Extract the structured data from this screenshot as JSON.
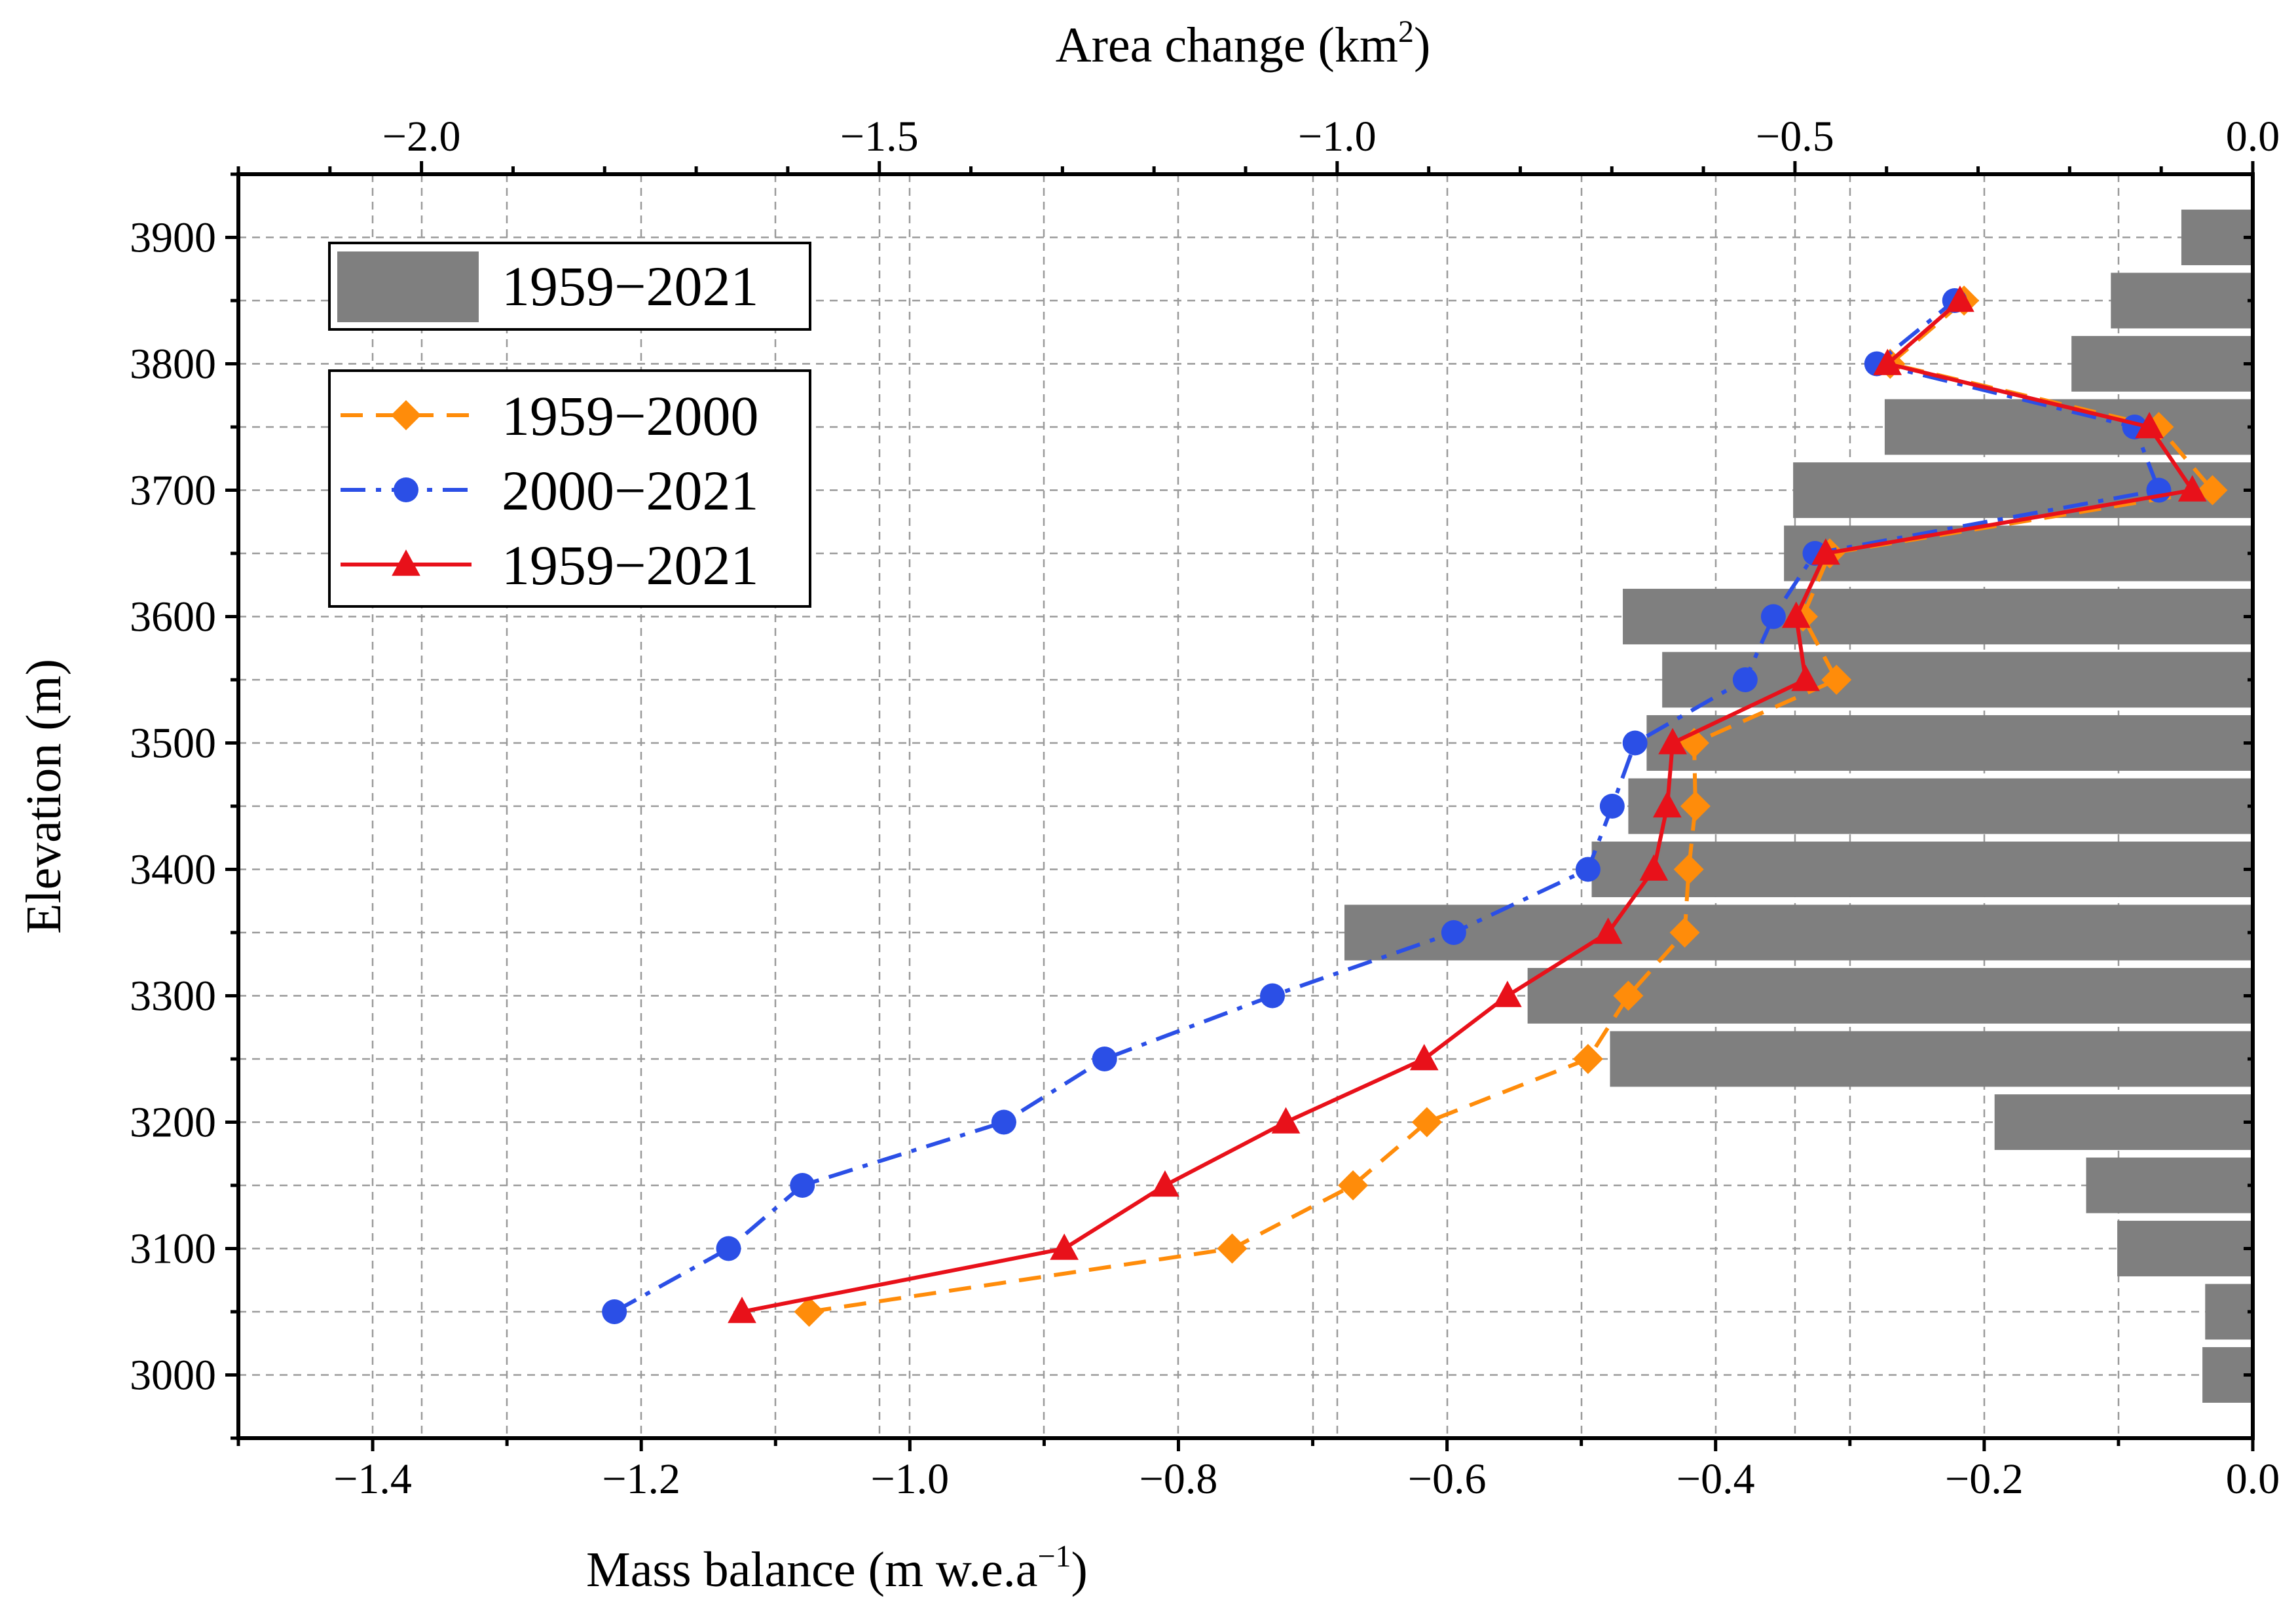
{
  "chart_data": {
    "type": "line",
    "xlabel_bottom": {
      "main": "Mass balance (m w.e.a",
      "sup": "−1",
      "end": ")"
    },
    "xlabel_top": {
      "main": "Area change (km",
      "sup": "2",
      "end": ")"
    },
    "ylabel": "Elevation (m)",
    "xlim_bottom": [
      -1.5,
      0.0
    ],
    "xlim_top": [
      -2.2,
      0.0
    ],
    "ylim": [
      2950,
      3950
    ],
    "bottom_ticks": [
      "−1.4",
      "−1.2",
      "−1.0",
      "−0.8",
      "−0.6",
      "−0.4",
      "−0.2",
      "0.0"
    ],
    "bottom_tick_values": [
      -1.4,
      -1.2,
      -1.0,
      -0.8,
      -0.6,
      -0.4,
      -0.2,
      0.0
    ],
    "top_ticks": [
      "−2.0",
      "−1.5",
      "−1.0",
      "−0.5",
      "0.0"
    ],
    "top_tick_values": [
      -2.0,
      -1.5,
      -1.0,
      -0.5,
      0.0
    ],
    "y_ticks": [
      "3000",
      "3100",
      "3200",
      "3300",
      "3400",
      "3500",
      "3600",
      "3700",
      "3800",
      "3900"
    ],
    "y_tick_values": [
      3000,
      3100,
      3200,
      3300,
      3400,
      3500,
      3600,
      3700,
      3800,
      3900
    ],
    "grid": true,
    "legend_placement": "top-left",
    "bars": {
      "name": "1959−2021",
      "axis": "top",
      "color": "#7f7f7f",
      "elevations": [
        3000,
        3050,
        3100,
        3150,
        3200,
        3250,
        3300,
        3350,
        3400,
        3450,
        3500,
        3550,
        3600,
        3650,
        3700,
        3750,
        3800,
        3850,
        3900
      ],
      "values": [
        -0.055,
        -0.052,
        -0.148,
        -0.182,
        -0.282,
        -0.702,
        -0.792,
        -0.992,
        -0.722,
        -0.682,
        -0.662,
        -0.645,
        -0.688,
        -0.512,
        -0.502,
        -0.402,
        -0.198,
        -0.155,
        -0.078
      ]
    },
    "series": [
      {
        "name": "1959−2000",
        "style": "dashed",
        "marker": "diamond",
        "color": "#ff8c0a",
        "elevations": [
          3050,
          3100,
          3150,
          3200,
          3250,
          3300,
          3350,
          3400,
          3450,
          3500,
          3550,
          3600,
          3650,
          3700,
          3750,
          3800,
          3850
        ],
        "values": [
          -1.075,
          -0.76,
          -0.67,
          -0.615,
          -0.495,
          -0.465,
          -0.423,
          -0.42,
          -0.415,
          -0.416,
          -0.31,
          -0.335,
          -0.315,
          -0.03,
          -0.07,
          -0.27,
          -0.215
        ]
      },
      {
        "name": "2000−2021",
        "style": "dashdot",
        "marker": "circle",
        "color": "#2b4fe6",
        "elevations": [
          3050,
          3100,
          3150,
          3200,
          3250,
          3300,
          3350,
          3400,
          3450,
          3500,
          3550,
          3600,
          3650,
          3700,
          3750,
          3800,
          3850
        ],
        "values": [
          -1.22,
          -1.135,
          -1.08,
          -0.93,
          -0.855,
          -0.73,
          -0.595,
          -0.495,
          -0.477,
          -0.46,
          -0.378,
          -0.357,
          -0.326,
          -0.07,
          -0.088,
          -0.28,
          -0.222
        ]
      },
      {
        "name": "1959−2021",
        "style": "solid",
        "marker": "triangle",
        "color": "#e8111a",
        "elevations": [
          3050,
          3100,
          3150,
          3200,
          3250,
          3300,
          3350,
          3400,
          3450,
          3500,
          3550,
          3600,
          3650,
          3700,
          3750,
          3800,
          3850
        ],
        "values": [
          -1.125,
          -0.885,
          -0.81,
          -0.72,
          -0.617,
          -0.555,
          -0.48,
          -0.446,
          -0.436,
          -0.432,
          -0.333,
          -0.34,
          -0.318,
          -0.045,
          -0.077,
          -0.272,
          -0.218
        ]
      }
    ]
  }
}
